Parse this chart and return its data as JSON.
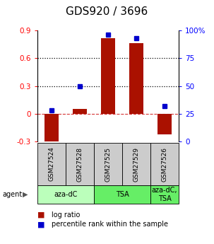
{
  "title": "GDS920 / 3696",
  "samples": [
    "GSM27524",
    "GSM27528",
    "GSM27525",
    "GSM27529",
    "GSM27526"
  ],
  "log_ratios": [
    -0.32,
    0.05,
    0.82,
    0.76,
    -0.22
  ],
  "percentile_ranks": [
    28,
    50,
    96,
    93,
    32
  ],
  "ylim_left": [
    -0.3,
    0.9
  ],
  "ylim_right": [
    0,
    100
  ],
  "yticks_left": [
    -0.3,
    0.0,
    0.3,
    0.6,
    0.9
  ],
  "yticks_right": [
    0,
    25,
    50,
    75,
    100
  ],
  "ytick_labels_left": [
    "-0.3",
    "0",
    "0.3",
    "0.6",
    "0.9"
  ],
  "ytick_labels_right": [
    "0",
    "25",
    "50",
    "75",
    "100%"
  ],
  "hlines": [
    0.0,
    0.3,
    0.6
  ],
  "hline_styles": [
    "dashed",
    "dotted",
    "dotted"
  ],
  "hline_colors": [
    "#cc0000",
    "#000000",
    "#000000"
  ],
  "bar_color": "#aa1100",
  "dot_color": "#0000cc",
  "bar_width": 0.5,
  "agent_spans": [
    {
      "start": 0,
      "end": 2,
      "label": "aza-dC",
      "color": "#bbffbb"
    },
    {
      "start": 2,
      "end": 4,
      "label": "TSA",
      "color": "#66ee66"
    },
    {
      "start": 4,
      "end": 5,
      "label": "aza-dC,\nTSA",
      "color": "#66ee66"
    }
  ],
  "sample_box_color": "#cccccc",
  "title_fontsize": 11,
  "tick_fontsize": 7.5,
  "sample_fontsize": 6.5,
  "agent_fontsize": 7,
  "legend_fontsize": 7
}
